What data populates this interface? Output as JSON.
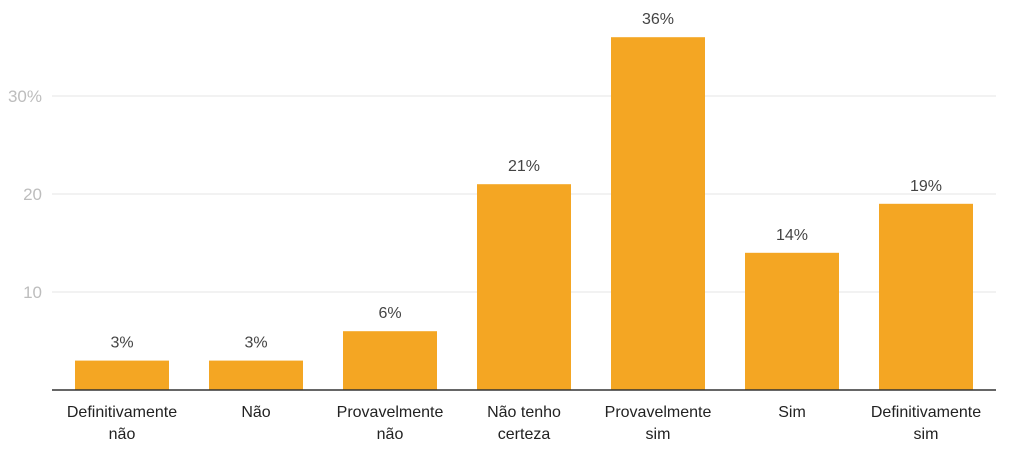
{
  "chart_data": {
    "type": "bar",
    "categories": [
      [
        "Definitivamente",
        "não"
      ],
      [
        "Não"
      ],
      [
        "Provavelmente",
        "não"
      ],
      [
        "Não tenho",
        "certeza"
      ],
      [
        "Provavelmente",
        "sim"
      ],
      [
        "Sim"
      ],
      [
        "Definitivamente",
        "sim"
      ]
    ],
    "values": [
      3,
      3,
      6,
      21,
      36,
      14,
      19
    ],
    "data_labels": [
      "3%",
      "3%",
      "6%",
      "21%",
      "36%",
      "14%",
      "19%"
    ],
    "y_ticks": [
      {
        "value": 10,
        "label": "10"
      },
      {
        "value": 20,
        "label": "20"
      },
      {
        "value": 30,
        "label": "30%"
      }
    ],
    "ylim": [
      0,
      40
    ],
    "grid": true,
    "legend": "none",
    "title": "",
    "xlabel": "",
    "ylabel": "",
    "bar_color": "#f4a623"
  }
}
